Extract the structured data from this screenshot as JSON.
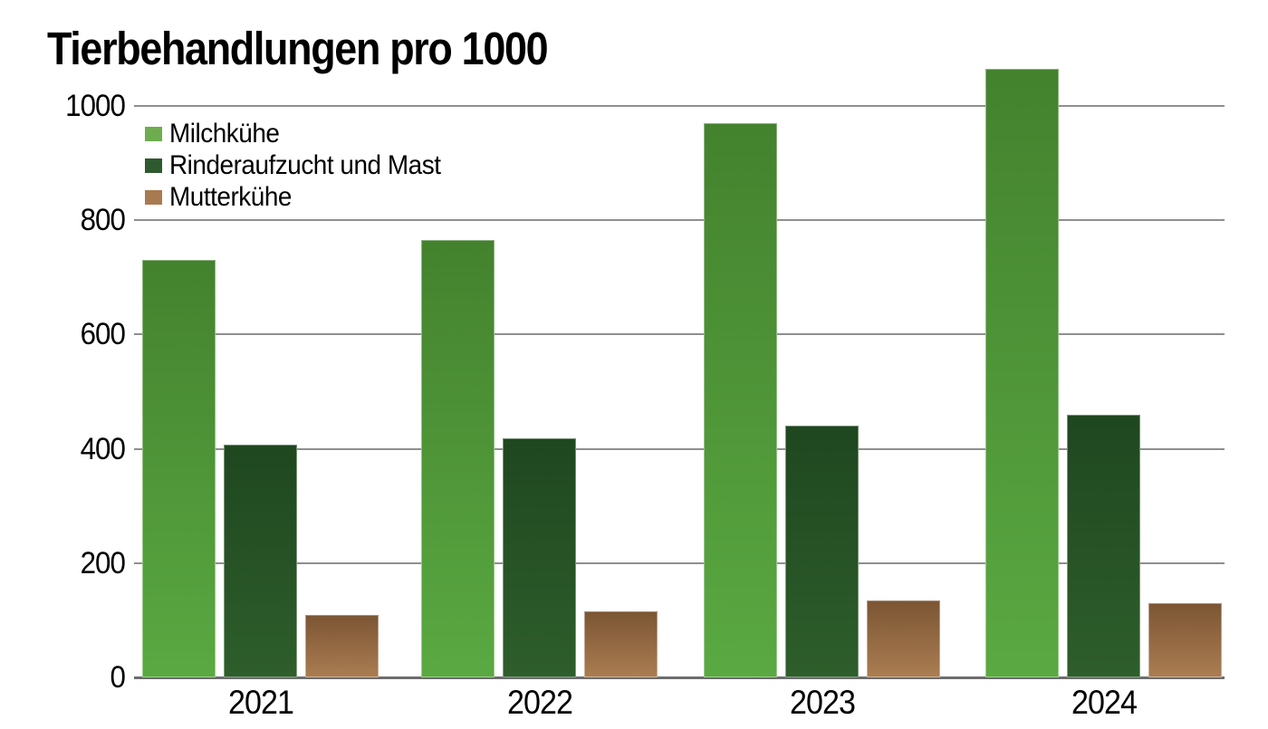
{
  "title": "Tierbehandlungen pro 1000",
  "chart_data": {
    "type": "bar",
    "title": "Tierbehandlungen pro 1000",
    "categories": [
      "2021",
      "2022",
      "2023",
      "2024"
    ],
    "series": [
      {
        "name": "Milchkühe",
        "legend_color": "#6dad4f",
        "color_top": "#44822e",
        "color_bottom": "#5aa942",
        "values": [
          730,
          765,
          970,
          1065
        ]
      },
      {
        "name": "Rinderaufzucht und Mast",
        "legend_color": "#2d5a2f",
        "color_top": "#1f4720",
        "color_bottom": "#2e5e2b",
        "values": [
          408,
          418,
          440,
          460
        ]
      },
      {
        "name": "Mutterkühe",
        "legend_color": "#a87a52",
        "color_top": "#7b5533",
        "color_bottom": "#ab7d52",
        "values": [
          110,
          115,
          135,
          130
        ]
      }
    ],
    "xlabel": "",
    "ylabel": "",
    "ylim": [
      0,
      1000
    ],
    "yticks": [
      0,
      200,
      400,
      600,
      800,
      1000
    ],
    "grid": true,
    "gridline_color": "#8f8f8f",
    "axis_line_color": "#6d6d6d",
    "legend_position": "top-left-inside"
  }
}
